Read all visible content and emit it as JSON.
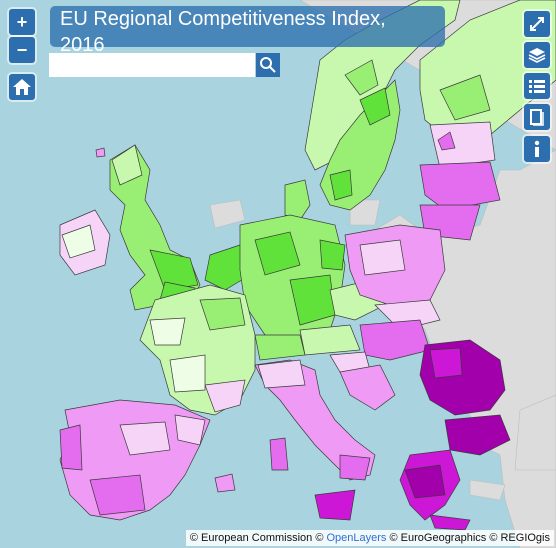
{
  "map": {
    "title": "EU Regional Competitiveness Index, 2016",
    "search_placeholder": "",
    "colors": {
      "sea": "#a9d3df",
      "non_eu_land": "#dcdcdc",
      "border": "#3a3a3a",
      "very_high": "#61e23a",
      "high": "#99ee74",
      "above_avg": "#c8f8ad",
      "near_avg": "#eefee6",
      "below_avg": "#f6d4f8",
      "low": "#ef9af4",
      "lower": "#e46cee",
      "very_low": "#cc18d6",
      "lowest": "#a100aa"
    }
  },
  "controls": {
    "zoom_in": "+",
    "zoom_out": "−",
    "home_icon": "home-icon",
    "fullscreen_icon": "expand-icon",
    "layers_icon": "layers-icon",
    "legend_icon": "list-icon",
    "book_icon": "book-icon",
    "info_icon": "info-icon"
  },
  "attribution": {
    "prefix": "© European Commission ©",
    "link": "OpenLayers",
    "suffix": "© EuroGeographics © REGIOgis"
  }
}
